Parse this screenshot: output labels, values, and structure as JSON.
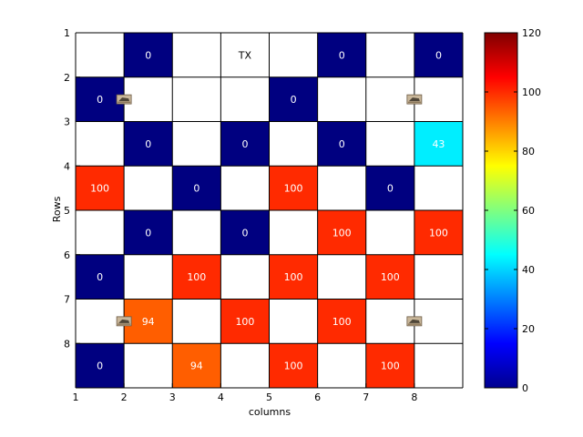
{
  "chart_data": {
    "type": "heatmap",
    "xlabel": "columns",
    "ylabel": "Rows",
    "x_ticks": [
      "1",
      "2",
      "3",
      "4",
      "5",
      "6",
      "7",
      "8"
    ],
    "y_ticks": [
      "1",
      "2",
      "3",
      "4",
      "5",
      "6",
      "7",
      "8"
    ],
    "colorbar": {
      "min": 0,
      "max": 120,
      "ticks": [
        "0",
        "20",
        "40",
        "60",
        "80",
        "100",
        "120"
      ],
      "colormap": "jet"
    },
    "grid": true,
    "values": [
      [
        null,
        0,
        null,
        null,
        null,
        0,
        null,
        0
      ],
      [
        0,
        null,
        null,
        null,
        0,
        null,
        null,
        null
      ],
      [
        null,
        0,
        null,
        0,
        null,
        0,
        null,
        43
      ],
      [
        100,
        null,
        0,
        null,
        100,
        null,
        0,
        null
      ],
      [
        null,
        0,
        null,
        0,
        null,
        100,
        null,
        100
      ],
      [
        0,
        null,
        100,
        null,
        100,
        null,
        100,
        null
      ],
      [
        null,
        94,
        null,
        100,
        null,
        100,
        null,
        null
      ],
      [
        0,
        null,
        94,
        null,
        100,
        null,
        100,
        null
      ]
    ],
    "text_labels": [
      {
        "row": 1,
        "col": 4,
        "text": "TX"
      }
    ],
    "markers": [
      {
        "row": 2,
        "at_line": 2,
        "icon": "vehicle-icon"
      },
      {
        "row": 2,
        "at_line": 8,
        "icon": "vehicle-icon"
      },
      {
        "row": 7,
        "at_line": 2,
        "icon": "vehicle-icon"
      },
      {
        "row": 7,
        "at_line": 8,
        "icon": "vehicle-icon"
      }
    ]
  }
}
